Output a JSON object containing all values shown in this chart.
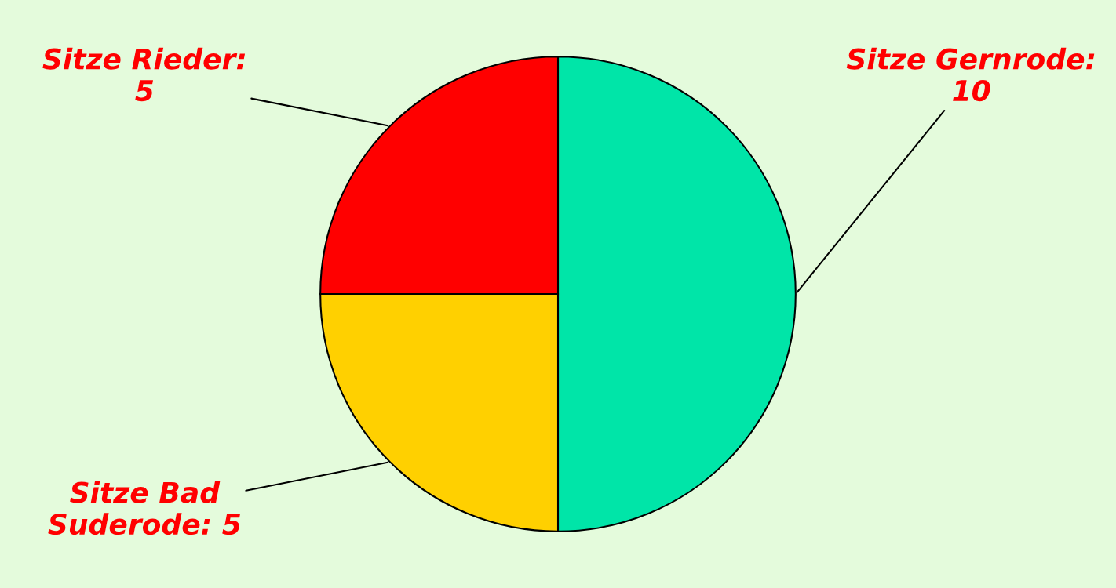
{
  "chart_data": {
    "type": "pie",
    "categories": [
      "Sitze Gernrode: 10",
      "Sitze Bad Suderode: 5",
      "Sitze Rieder: 5"
    ],
    "values": [
      10,
      5,
      5
    ],
    "colors": [
      "#00e5a8",
      "#ffd000",
      "#ff0000"
    ],
    "legend": false
  }
}
